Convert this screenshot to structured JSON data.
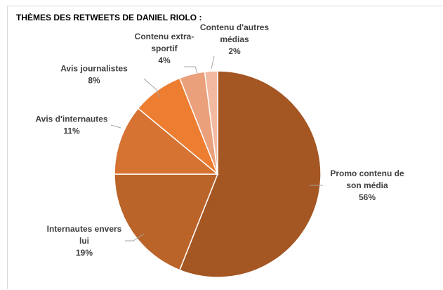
{
  "chart_data": {
    "type": "pie",
    "title": "THÈMES DES RETWEETS DE DANIEL RIOLO :",
    "slices": [
      {
        "label": "Promo contenu de son média",
        "value": 56,
        "value_label": "56%",
        "color": "#a45623",
        "label_lines": [
          "Promo contenu de",
          "son média",
          "56%"
        ]
      },
      {
        "label": "Internautes envers lui",
        "value": 19,
        "value_label": "19%",
        "color": "#bb6429",
        "label_lines": [
          "Internautes envers",
          "lui",
          "19%"
        ]
      },
      {
        "label": "Avis d'internautes",
        "value": 11,
        "value_label": "11%",
        "color": "#d67232",
        "label_lines": [
          "Avis d'internautes",
          "11%"
        ]
      },
      {
        "label": "Avis journalistes",
        "value": 8,
        "value_label": "8%",
        "color": "#ed7d31",
        "label_lines": [
          "Avis journalistes",
          "8%"
        ]
      },
      {
        "label": "Contenu extra-sportif",
        "value": 4,
        "value_label": "4%",
        "color": "#eba07c",
        "label_lines": [
          "Contenu extra-",
          "sportif",
          "4%"
        ]
      },
      {
        "label": "Contenu d'autres médias",
        "value": 2,
        "value_label": "2%",
        "color": "#f3baa1",
        "label_lines": [
          "Contenu d'autres",
          "médias",
          "2%"
        ]
      }
    ],
    "legend": "none",
    "data_labels": "outside-with-leader-lines"
  }
}
